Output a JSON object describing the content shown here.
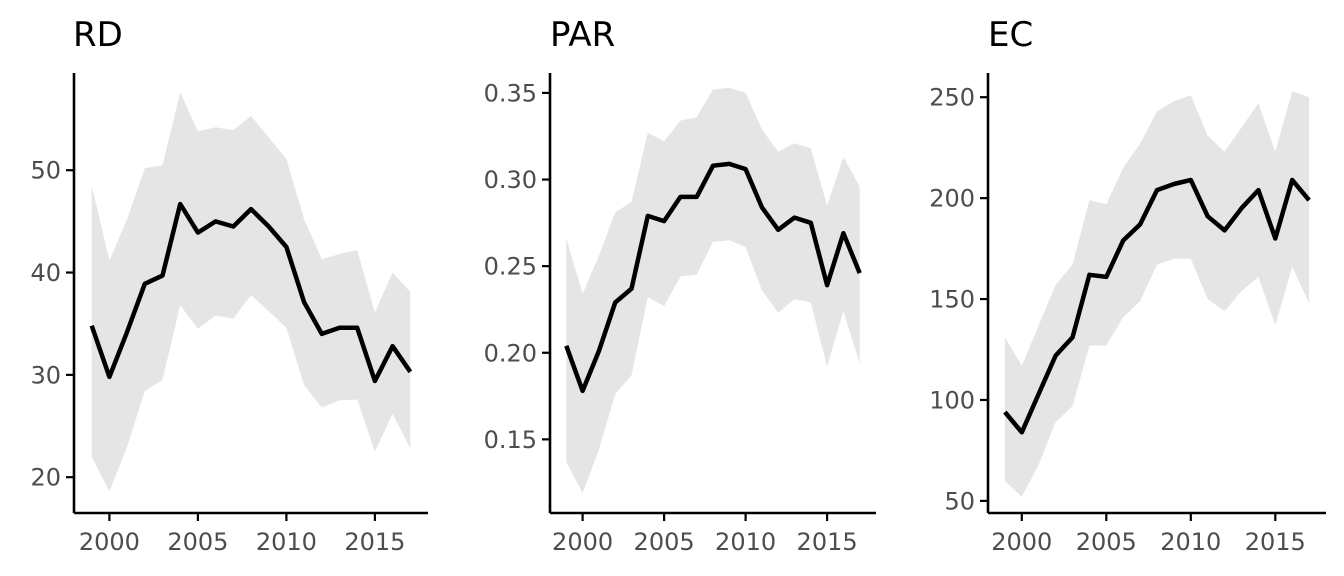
{
  "chart_data": [
    {
      "type": "line",
      "title": "RD",
      "xlabel": "",
      "ylabel": "",
      "xlim": [
        1998.0,
        2018.0
      ],
      "ylim": [
        16.5,
        59.5
      ],
      "x_ticks": [
        2000,
        2005,
        2010,
        2015
      ],
      "y_ticks": [
        20,
        30,
        40,
        50
      ],
      "grid": false,
      "series": [
        {
          "x": [
            1999,
            2000,
            2001,
            2002,
            2003,
            2004,
            2005,
            2006,
            2007,
            2008,
            2009,
            2010,
            2011,
            2012,
            2013,
            2014,
            2015,
            2016,
            2017
          ],
          "y": [
            34.8,
            29.8,
            34.2,
            38.9,
            39.7,
            46.7,
            43.9,
            45.0,
            44.5,
            46.2,
            44.5,
            42.5,
            37.1,
            34.0,
            34.6,
            34.6,
            29.4,
            32.8,
            30.3
          ],
          "lower": [
            22.0,
            18.6,
            23.0,
            28.4,
            29.5,
            36.8,
            34.5,
            35.8,
            35.5,
            37.8,
            36.2,
            34.6,
            29.0,
            26.8,
            27.5,
            27.6,
            22.5,
            26.2,
            22.8
          ],
          "upper": [
            48.5,
            41.2,
            45.2,
            50.2,
            50.5,
            57.6,
            53.8,
            54.2,
            53.9,
            55.3,
            53.2,
            51.1,
            45.2,
            41.3,
            41.8,
            42.2,
            36.1,
            40.0,
            38.1
          ]
        }
      ]
    },
    {
      "type": "line",
      "title": "PAR",
      "xlabel": "",
      "ylabel": "",
      "xlim": [
        1998.0,
        2018.0
      ],
      "ylim": [
        0.1075,
        0.3615
      ],
      "x_ticks": [
        2000,
        2005,
        2010,
        2015
      ],
      "y_ticks": [
        0.15,
        0.2,
        0.25,
        0.3,
        0.35
      ],
      "y_tick_labels": [
        "0.15",
        "0.20",
        "0.25",
        "0.30",
        "0.35"
      ],
      "grid": false,
      "series": [
        {
          "x": [
            1999,
            2000,
            2001,
            2002,
            2003,
            2004,
            2005,
            2006,
            2007,
            2008,
            2009,
            2010,
            2011,
            2012,
            2013,
            2014,
            2015,
            2016,
            2017
          ],
          "y": [
            0.204,
            0.178,
            0.201,
            0.229,
            0.237,
            0.279,
            0.276,
            0.29,
            0.29,
            0.308,
            0.309,
            0.306,
            0.284,
            0.271,
            0.278,
            0.275,
            0.239,
            0.269,
            0.246
          ],
          "lower": [
            0.137,
            0.119,
            0.144,
            0.176,
            0.187,
            0.232,
            0.227,
            0.244,
            0.245,
            0.264,
            0.265,
            0.261,
            0.236,
            0.223,
            0.231,
            0.229,
            0.192,
            0.224,
            0.194
          ],
          "upper": [
            0.266,
            0.234,
            0.256,
            0.281,
            0.287,
            0.327,
            0.322,
            0.334,
            0.336,
            0.352,
            0.353,
            0.35,
            0.329,
            0.316,
            0.321,
            0.318,
            0.285,
            0.313,
            0.296
          ]
        }
      ]
    },
    {
      "type": "line",
      "title": "EC",
      "xlabel": "",
      "ylabel": "",
      "xlim": [
        1998.0,
        2018.0
      ],
      "ylim": [
        44.0,
        262.0
      ],
      "x_ticks": [
        2000,
        2005,
        2010,
        2015
      ],
      "y_ticks": [
        50,
        100,
        150,
        200,
        250
      ],
      "grid": false,
      "series": [
        {
          "x": [
            1999,
            2000,
            2001,
            2002,
            2003,
            2004,
            2005,
            2006,
            2007,
            2008,
            2009,
            2010,
            2011,
            2012,
            2013,
            2014,
            2015,
            2016,
            2017
          ],
          "y": [
            94,
            84,
            103,
            122,
            131,
            162,
            161,
            179,
            187,
            204,
            207,
            209,
            191,
            184,
            195,
            204,
            180,
            209,
            199
          ],
          "lower": [
            60,
            52,
            68,
            89,
            97,
            127,
            127,
            141,
            149,
            167,
            170,
            170,
            150,
            144,
            154,
            161,
            137,
            166,
            148
          ],
          "upper": [
            131,
            117,
            137,
            157,
            167,
            199,
            197,
            215,
            227,
            243,
            248,
            251,
            231,
            223,
            235,
            247,
            223,
            253,
            250
          ]
        }
      ]
    }
  ]
}
